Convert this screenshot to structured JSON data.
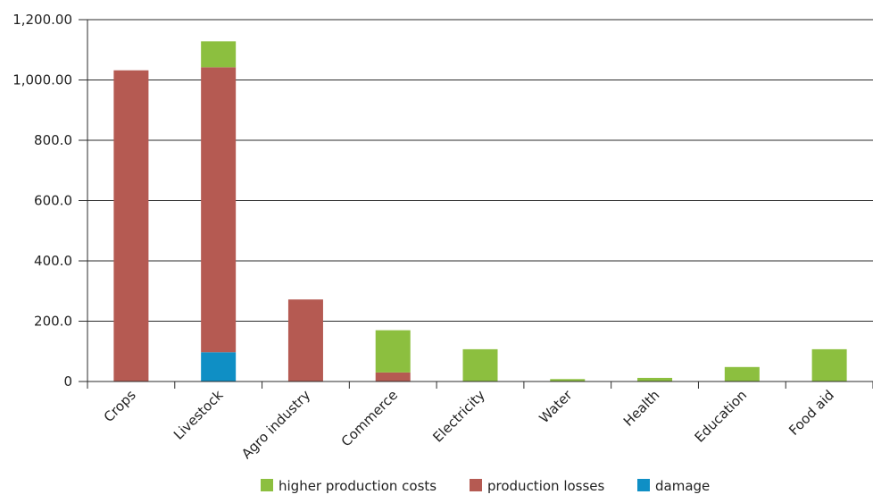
{
  "chart_data": {
    "type": "bar",
    "stacked": true,
    "categories": [
      "Crops",
      "Livestock",
      "Agro industry",
      "Commerce",
      "Electricity",
      "Water",
      "Health",
      "Education",
      "Food aid"
    ],
    "series": [
      {
        "name": "damage",
        "color": "#0f8fc5",
        "values": [
          0,
          97,
          0,
          0,
          0,
          0,
          0,
          0,
          0
        ]
      },
      {
        "name": "production losses",
        "color": "#b55a52",
        "values": [
          1032,
          945,
          272,
          30,
          0,
          0,
          0,
          0,
          0
        ]
      },
      {
        "name": "higher production costs",
        "color": "#8cbf3f",
        "values": [
          0,
          86,
          0,
          140,
          107,
          8,
          12,
          48,
          107
        ]
      }
    ],
    "ylim": [
      0,
      1200
    ],
    "yticks": [
      0,
      200,
      400,
      600,
      800,
      1000,
      1200
    ],
    "ytick_labels": [
      "0",
      "200.0",
      "400.0",
      "600.0",
      "800.0",
      "1,000.00",
      "1,200.00"
    ],
    "legend_order": [
      "higher production costs",
      "production losses",
      "damage"
    ],
    "legend_position": "bottom",
    "grid": true,
    "title": "",
    "xlabel": "",
    "ylabel": ""
  }
}
